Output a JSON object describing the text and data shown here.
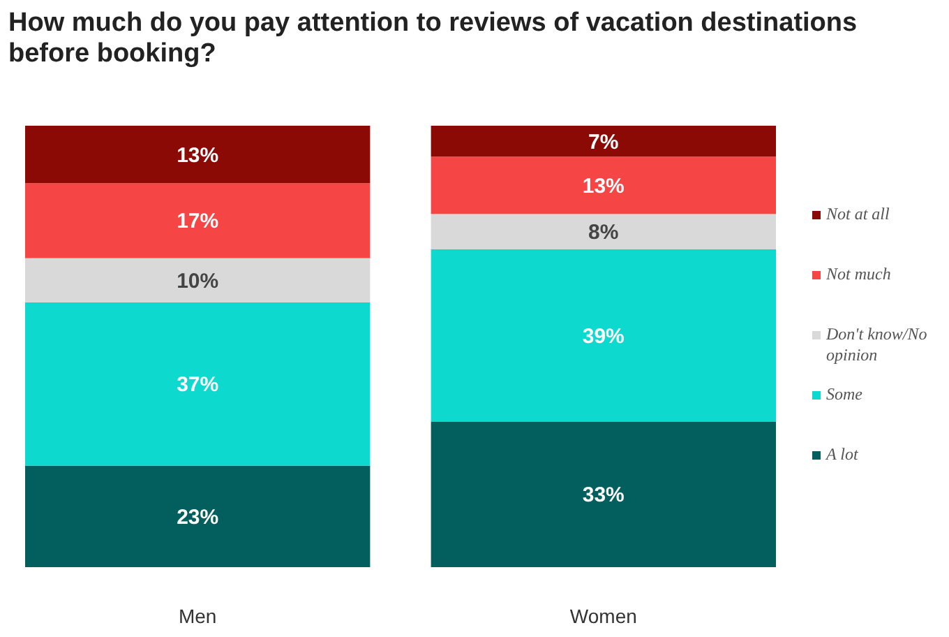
{
  "chart_data": {
    "type": "bar",
    "title": "How much do you pay attention to reviews of vacation destinations before booking?",
    "categories": [
      "Men",
      "Women"
    ],
    "stacked": true,
    "legend": "right",
    "series": [
      {
        "name": "A lot",
        "color": "#035e5e",
        "values": [
          23,
          33
        ],
        "value_labels": [
          "23%",
          "33%"
        ]
      },
      {
        "name": "Some",
        "color": "#0dd9cf",
        "values": [
          37,
          39
        ],
        "value_labels": [
          "37%",
          "39%"
        ]
      },
      {
        "name": "Don't know/No opinion",
        "color": "#d9d9d9",
        "values": [
          10,
          8
        ],
        "value_labels": [
          "10%",
          "8%"
        ]
      },
      {
        "name": "Not much",
        "color": "#f54545",
        "values": [
          17,
          13
        ],
        "value_labels": [
          "17%",
          "13%"
        ]
      },
      {
        "name": "Not at all",
        "color": "#8b0a05",
        "values": [
          13,
          7
        ],
        "value_labels": [
          "13%",
          "7%"
        ]
      }
    ]
  }
}
